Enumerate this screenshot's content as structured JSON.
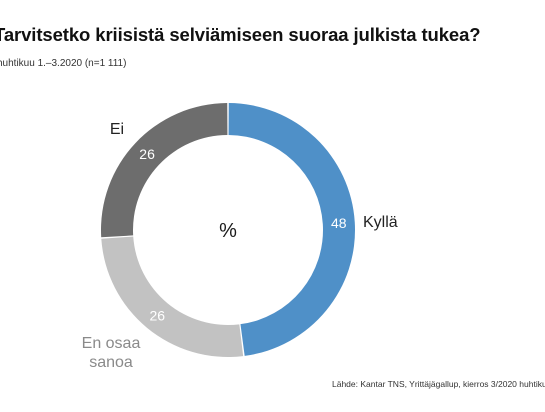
{
  "header": {
    "title": "Tarvitsetko kriisistä selviämiseen suoraa julkista tukea?",
    "subtitle": "huhtikuu 1.–3.2020 (n=1 111)"
  },
  "footer": {
    "source": "Lähde: Kantar TNS, Yrittäjägallup, kierros 3/2020 huhtiku"
  },
  "chart_data": {
    "type": "pie",
    "variant": "donut",
    "center_label": "%",
    "slices": [
      {
        "label": "Kyllä",
        "value": 48,
        "color": "#4f90c8"
      },
      {
        "label": "En osaa sanoa",
        "label_lines": [
          "En osaa",
          "sanoa"
        ],
        "value": 26,
        "color": "#c2c2c2"
      },
      {
        "label": "Ei",
        "value": 26,
        "color": "#6d6d6d"
      }
    ],
    "start": "top",
    "direction": "clockwise",
    "label_colors": {
      "Kyllä": "#222222",
      "En osaa sanoa": "#8a8a8a",
      "Ei": "#222222"
    }
  }
}
